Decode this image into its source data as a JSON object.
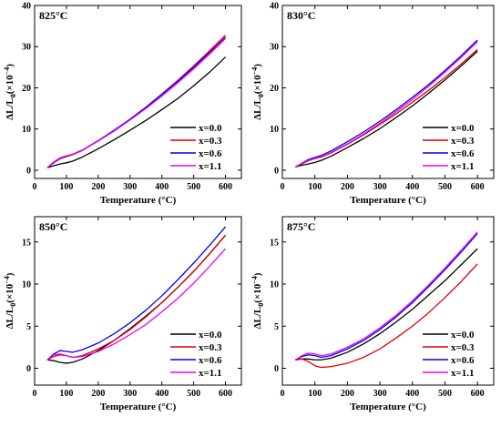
{
  "chart_data": [
    {
      "type": "line",
      "title": "825°C",
      "xlabel": "Temperature (°C)",
      "ylabel": "ΔL/L",
      "ylabel_sub": "0",
      "ylabel_tail": "(×10",
      "ylabel_sup": "−4",
      "ylabel_close": ")",
      "xlim": [
        0,
        650
      ],
      "ylim": [
        -2,
        40
      ],
      "xticks": [
        0,
        100,
        200,
        300,
        400,
        500,
        600
      ],
      "yticks": [
        0,
        10,
        20,
        30,
        40
      ],
      "legend_position": "bottom-right",
      "grid": false,
      "series": [
        {
          "name": "x=0.0",
          "color": "#000000",
          "x": [
            40,
            60,
            80,
            100,
            120,
            150,
            200,
            250,
            300,
            350,
            400,
            450,
            500,
            550,
            600
          ],
          "y": [
            0.6,
            1.1,
            1.5,
            1.8,
            2.2,
            3.2,
            5.2,
            7.4,
            9.7,
            12.1,
            14.7,
            17.4,
            20.5,
            23.8,
            27.5
          ]
        },
        {
          "name": "x=0.3",
          "color": "#e00000",
          "x": [
            40,
            60,
            80,
            100,
            120,
            150,
            200,
            250,
            300,
            350,
            400,
            450,
            500,
            550,
            600
          ],
          "y": [
            0.6,
            1.8,
            2.8,
            3.3,
            3.8,
            4.8,
            7.1,
            9.6,
            12.3,
            15.3,
            18.5,
            21.8,
            25.3,
            29.0,
            32.8
          ]
        },
        {
          "name": "x=0.6",
          "color": "#0000ee",
          "x": [
            40,
            60,
            80,
            100,
            120,
            150,
            200,
            250,
            300,
            350,
            400,
            450,
            500,
            550,
            600
          ],
          "y": [
            0.6,
            1.9,
            2.9,
            3.4,
            3.9,
            4.9,
            7.2,
            9.7,
            12.4,
            15.3,
            18.4,
            21.6,
            25.0,
            28.6,
            32.3
          ]
        },
        {
          "name": "x=1.1",
          "color": "#ee00ee",
          "x": [
            40,
            60,
            80,
            100,
            120,
            150,
            200,
            250,
            300,
            350,
            400,
            450,
            500,
            550,
            600
          ],
          "y": [
            0.6,
            2.0,
            3.0,
            3.5,
            3.9,
            4.9,
            7.1,
            9.5,
            12.2,
            15.0,
            18.0,
            21.2,
            24.6,
            28.2,
            32.0
          ]
        }
      ]
    },
    {
      "type": "line",
      "title": "830°C",
      "xlabel": "Temperature (°C)",
      "ylabel": "ΔL/L",
      "ylabel_sub": "0",
      "ylabel_tail": "(×10",
      "ylabel_sup": "−4",
      "ylabel_close": ")",
      "xlim": [
        0,
        650
      ],
      "ylim": [
        -2,
        40
      ],
      "xticks": [
        0,
        100,
        200,
        300,
        400,
        500,
        600
      ],
      "yticks": [
        0,
        10,
        20,
        30,
        40
      ],
      "legend_position": "bottom-right",
      "grid": false,
      "series": [
        {
          "name": "x=0.0",
          "color": "#000000",
          "x": [
            40,
            60,
            80,
            100,
            120,
            150,
            200,
            250,
            300,
            350,
            400,
            450,
            500,
            550,
            600
          ],
          "y": [
            0.8,
            1.2,
            1.5,
            1.9,
            2.4,
            3.4,
            5.5,
            7.7,
            10.1,
            12.8,
            15.6,
            18.7,
            21.9,
            25.3,
            28.9
          ]
        },
        {
          "name": "x=0.3",
          "color": "#e00000",
          "x": [
            40,
            60,
            80,
            100,
            120,
            150,
            200,
            250,
            300,
            350,
            400,
            450,
            500,
            550,
            600
          ],
          "y": [
            0.8,
            1.5,
            2.3,
            2.8,
            3.2,
            4.2,
            6.3,
            8.6,
            11.1,
            13.7,
            16.5,
            19.4,
            22.5,
            25.8,
            29.3
          ]
        },
        {
          "name": "x=0.6",
          "color": "#0000ee",
          "x": [
            40,
            60,
            80,
            100,
            120,
            150,
            200,
            250,
            300,
            350,
            400,
            450,
            500,
            550,
            600
          ],
          "y": [
            0.8,
            1.7,
            2.6,
            3.1,
            3.6,
            4.7,
            6.9,
            9.3,
            11.9,
            14.7,
            17.7,
            20.8,
            24.2,
            27.8,
            31.6
          ]
        },
        {
          "name": "x=1.1",
          "color": "#ee00ee",
          "x": [
            40,
            60,
            80,
            100,
            120,
            150,
            200,
            250,
            300,
            350,
            400,
            450,
            500,
            550,
            600
          ],
          "y": [
            0.8,
            1.6,
            2.4,
            2.9,
            3.3,
            4.3,
            6.4,
            8.8,
            11.4,
            14.2,
            17.2,
            20.4,
            23.8,
            27.4,
            31.2
          ]
        }
      ]
    },
    {
      "type": "line",
      "title": "850°C",
      "xlabel": "Temperature (°C)",
      "ylabel": "ΔL/L",
      "ylabel_sub": "0",
      "ylabel_tail": "(×10",
      "ylabel_sup": "−4",
      "ylabel_close": ")",
      "xlim": [
        0,
        650
      ],
      "ylim": [
        -2,
        18
      ],
      "xticks": [
        0,
        100,
        200,
        300,
        400,
        500,
        600
      ],
      "yticks": [
        0,
        5,
        10,
        15
      ],
      "legend_position": "bottom-right",
      "grid": false,
      "series": [
        {
          "name": "x=0.0",
          "color": "#000000",
          "x": [
            40,
            60,
            80,
            100,
            120,
            150,
            200,
            250,
            300,
            350,
            400,
            450,
            500,
            550,
            600
          ],
          "y": [
            1.0,
            0.9,
            0.7,
            0.6,
            0.7,
            1.1,
            2.1,
            3.3,
            4.7,
            6.2,
            7.8,
            9.6,
            11.5,
            13.6,
            15.8
          ]
        },
        {
          "name": "x=0.3",
          "color": "#e00000",
          "x": [
            40,
            60,
            80,
            100,
            120,
            150,
            200,
            250,
            300,
            350,
            400,
            450,
            500,
            550,
            600
          ],
          "y": [
            1.0,
            1.4,
            1.6,
            1.5,
            1.3,
            1.5,
            2.3,
            3.3,
            4.6,
            6.1,
            7.8,
            9.6,
            11.5,
            13.6,
            15.8
          ]
        },
        {
          "name": "x=0.6",
          "color": "#0000ee",
          "x": [
            40,
            60,
            80,
            100,
            120,
            150,
            200,
            250,
            300,
            350,
            400,
            450,
            500,
            550,
            600
          ],
          "y": [
            1.0,
            1.7,
            2.1,
            2.0,
            1.9,
            2.2,
            3.0,
            4.1,
            5.4,
            6.9,
            8.6,
            10.5,
            12.5,
            14.6,
            16.8
          ]
        },
        {
          "name": "x=1.1",
          "color": "#ee00ee",
          "x": [
            40,
            60,
            80,
            100,
            120,
            150,
            200,
            250,
            300,
            350,
            400,
            450,
            500,
            550,
            600
          ],
          "y": [
            1.0,
            1.6,
            1.7,
            1.5,
            1.3,
            1.4,
            2.0,
            2.9,
            4.0,
            5.2,
            6.7,
            8.3,
            10.1,
            12.1,
            14.2
          ]
        }
      ]
    },
    {
      "type": "line",
      "title": "875°C",
      "xlabel": "Temperature (°C)",
      "ylabel": "ΔL/L",
      "ylabel_sub": "0",
      "ylabel_tail": "(×10",
      "ylabel_sup": "−4",
      "ylabel_close": ")",
      "xlim": [
        0,
        650
      ],
      "ylim": [
        -2,
        18
      ],
      "xticks": [
        0,
        100,
        200,
        300,
        400,
        500,
        600
      ],
      "yticks": [
        0,
        5,
        10,
        15
      ],
      "legend_position": "bottom-right",
      "grid": false,
      "series": [
        {
          "name": "x=0.0",
          "color": "#000000",
          "x": [
            40,
            60,
            80,
            100,
            120,
            150,
            200,
            250,
            300,
            350,
            400,
            450,
            500,
            550,
            600
          ],
          "y": [
            1.0,
            1.1,
            1.1,
            1.0,
            1.0,
            1.2,
            1.9,
            2.9,
            4.1,
            5.5,
            7.0,
            8.7,
            10.4,
            12.3,
            14.2
          ]
        },
        {
          "name": "x=0.3",
          "color": "#e00000",
          "x": [
            40,
            60,
            80,
            100,
            120,
            150,
            200,
            250,
            300,
            350,
            400,
            450,
            500,
            550,
            600
          ],
          "y": [
            1.0,
            1.1,
            0.8,
            0.3,
            0.1,
            0.2,
            0.6,
            1.3,
            2.3,
            3.6,
            5.0,
            6.6,
            8.4,
            10.3,
            12.4
          ]
        },
        {
          "name": "x=0.6",
          "color": "#0000ee",
          "x": [
            40,
            60,
            80,
            100,
            120,
            150,
            200,
            250,
            300,
            350,
            400,
            450,
            500,
            550,
            600
          ],
          "y": [
            1.0,
            1.4,
            1.6,
            1.5,
            1.3,
            1.5,
            2.3,
            3.3,
            4.6,
            6.1,
            7.8,
            9.7,
            11.7,
            13.8,
            16.0
          ]
        },
        {
          "name": "x=1.1",
          "color": "#ee00ee",
          "x": [
            40,
            60,
            80,
            100,
            120,
            150,
            200,
            250,
            300,
            350,
            400,
            450,
            500,
            550,
            600
          ],
          "y": [
            1.0,
            1.5,
            1.8,
            1.7,
            1.5,
            1.7,
            2.5,
            3.5,
            4.8,
            6.3,
            8.0,
            9.9,
            11.9,
            14.0,
            16.2
          ]
        }
      ]
    }
  ]
}
